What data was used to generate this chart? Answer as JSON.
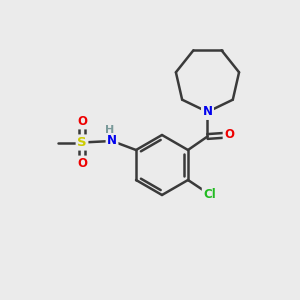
{
  "background_color": "#ebebeb",
  "bond_color": "#3a3a3a",
  "atom_colors": {
    "N": "#0000ee",
    "O": "#ee0000",
    "S": "#cccc00",
    "Cl": "#22bb22",
    "H": "#7a9a9a"
  },
  "figsize": [
    3.0,
    3.0
  ],
  "dpi": 100,
  "xlim": [
    0,
    10
  ],
  "ylim": [
    0,
    10
  ]
}
